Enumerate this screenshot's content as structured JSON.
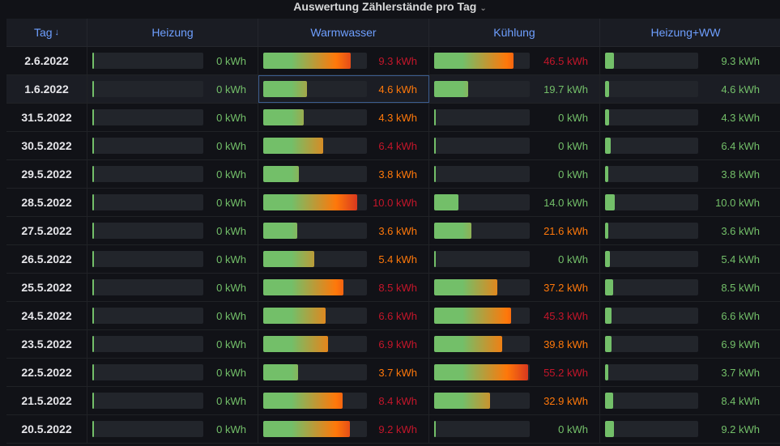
{
  "panel": {
    "title": "Auswertung Zählerstände pro Tag",
    "menu_icon": "chevron-down-icon"
  },
  "columns": {
    "date": "Tag",
    "sort_icon": "↓",
    "heizung": "Heizung",
    "warmwasser": "Warmwasser",
    "kuehlung": "Kühlung",
    "heizung_ww": "Heizung+WW"
  },
  "colors": {
    "green": "#73bf69",
    "orange": "#ff780a",
    "red": "#f2495c",
    "darkred": "#c4162a",
    "header": "#6e9fff"
  },
  "rows": [
    {
      "date": "2.6.2022",
      "heizung": "0 kWh",
      "ww": "9.3 kWh",
      "ww_v": 9.3,
      "k": "46.5 kWh",
      "k_v": 46.5,
      "hw": "9.3 kWh",
      "hw_v": 9.3
    },
    {
      "date": "1.6.2022",
      "heizung": "0 kWh",
      "ww": "4.6 kWh",
      "ww_v": 4.6,
      "k": "19.7 kWh",
      "k_v": 19.7,
      "hw": "4.6 kWh",
      "hw_v": 4.6
    },
    {
      "date": "31.5.2022",
      "heizung": "0 kWh",
      "ww": "4.3 kWh",
      "ww_v": 4.3,
      "k": "0 kWh",
      "k_v": 0,
      "hw": "4.3 kWh",
      "hw_v": 4.3
    },
    {
      "date": "30.5.2022",
      "heizung": "0 kWh",
      "ww": "6.4 kWh",
      "ww_v": 6.4,
      "k": "0 kWh",
      "k_v": 0,
      "hw": "6.4 kWh",
      "hw_v": 6.4
    },
    {
      "date": "29.5.2022",
      "heizung": "0 kWh",
      "ww": "3.8 kWh",
      "ww_v": 3.8,
      "k": "0 kWh",
      "k_v": 0,
      "hw": "3.8 kWh",
      "hw_v": 3.8
    },
    {
      "date": "28.5.2022",
      "heizung": "0 kWh",
      "ww": "10.0 kWh",
      "ww_v": 10.0,
      "k": "14.0 kWh",
      "k_v": 14.0,
      "hw": "10.0 kWh",
      "hw_v": 10.0
    },
    {
      "date": "27.5.2022",
      "heizung": "0 kWh",
      "ww": "3.6 kWh",
      "ww_v": 3.6,
      "k": "21.6 kWh",
      "k_v": 21.6,
      "hw": "3.6 kWh",
      "hw_v": 3.6
    },
    {
      "date": "26.5.2022",
      "heizung": "0 kWh",
      "ww": "5.4 kWh",
      "ww_v": 5.4,
      "k": "0 kWh",
      "k_v": 0,
      "hw": "5.4 kWh",
      "hw_v": 5.4
    },
    {
      "date": "25.5.2022",
      "heizung": "0 kWh",
      "ww": "8.5 kWh",
      "ww_v": 8.5,
      "k": "37.2 kWh",
      "k_v": 37.2,
      "hw": "8.5 kWh",
      "hw_v": 8.5
    },
    {
      "date": "24.5.2022",
      "heizung": "0 kWh",
      "ww": "6.6 kWh",
      "ww_v": 6.6,
      "k": "45.3 kWh",
      "k_v": 45.3,
      "hw": "6.6 kWh",
      "hw_v": 6.6
    },
    {
      "date": "23.5.2022",
      "heizung": "0 kWh",
      "ww": "6.9 kWh",
      "ww_v": 6.9,
      "k": "39.8 kWh",
      "k_v": 39.8,
      "hw": "6.9 kWh",
      "hw_v": 6.9
    },
    {
      "date": "22.5.2022",
      "heizung": "0 kWh",
      "ww": "3.7 kWh",
      "ww_v": 3.7,
      "k": "55.2 kWh",
      "k_v": 55.2,
      "hw": "3.7 kWh",
      "hw_v": 3.7
    },
    {
      "date": "21.5.2022",
      "heizung": "0 kWh",
      "ww": "8.4 kWh",
      "ww_v": 8.4,
      "k": "32.9 kWh",
      "k_v": 32.9,
      "hw": "8.4 kWh",
      "hw_v": 8.4
    },
    {
      "date": "20.5.2022",
      "heizung": "0 kWh",
      "ww": "9.2 kWh",
      "ww_v": 9.2,
      "k": "0 kWh",
      "k_v": 0,
      "hw": "9.2 kWh",
      "hw_v": 9.2
    }
  ]
}
